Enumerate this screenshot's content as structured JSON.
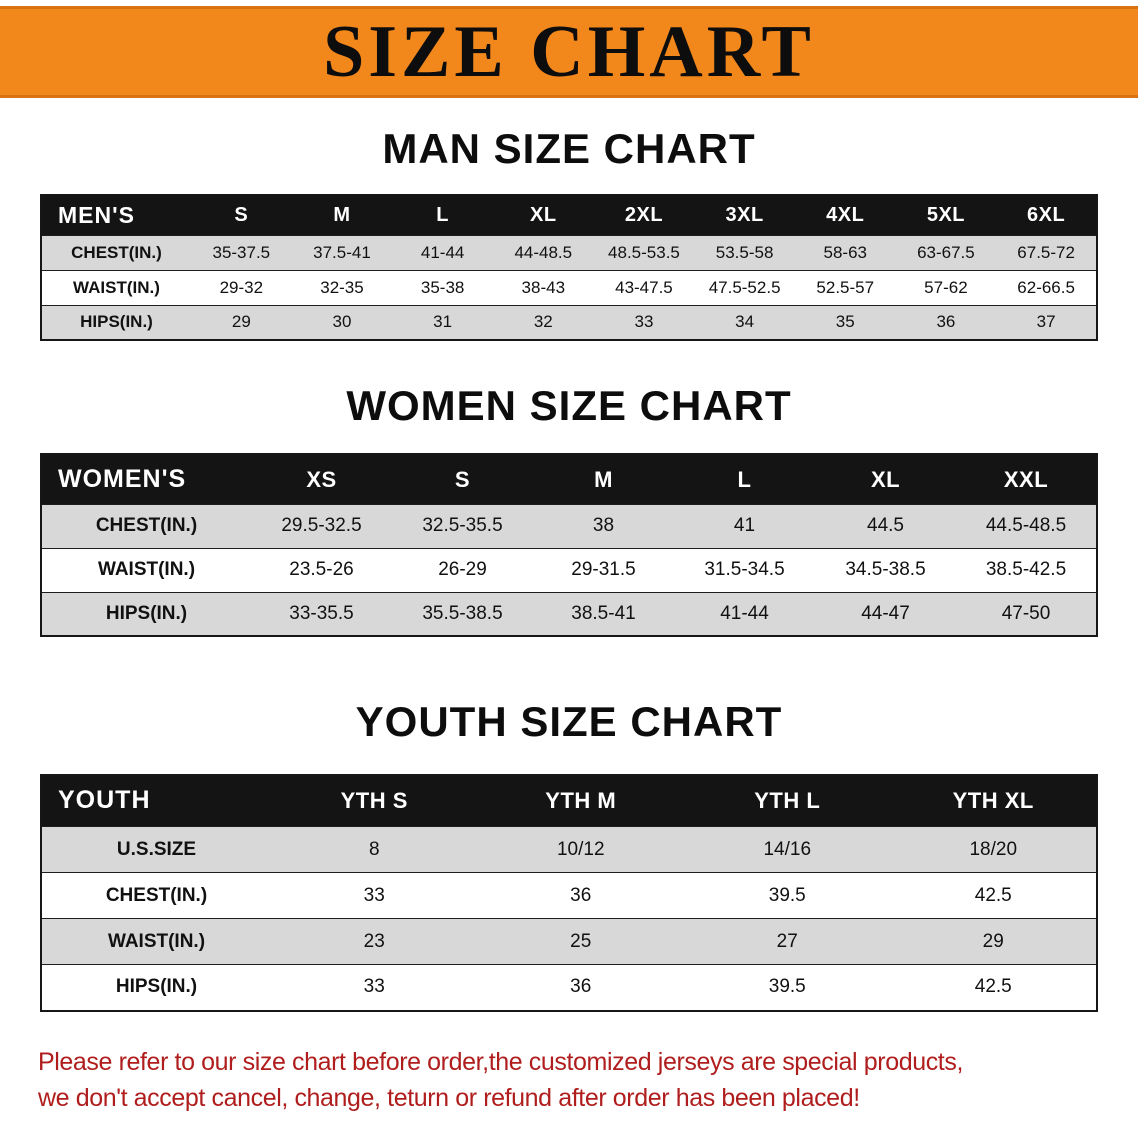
{
  "banner": {
    "title": "SIZE CHART"
  },
  "colors": {
    "banner_bg": "#f2871c",
    "header_bg": "#141414",
    "stripe": "#d8d8d8",
    "note_red": "#b01d1d"
  },
  "sections": [
    {
      "id": "men",
      "heading": "MAN SIZE CHART",
      "table": {
        "corner": "MEN'S",
        "columns": [
          "S",
          "M",
          "L",
          "XL",
          "2XL",
          "3XL",
          "4XL",
          "5XL",
          "6XL"
        ],
        "rows": [
          {
            "label": "CHEST(IN.)",
            "values": [
              "35-37.5",
              "37.5-41",
              "41-44",
              "44-48.5",
              "48.5-53.5",
              "53.5-58",
              "58-63",
              "63-67.5",
              "67.5-72"
            ]
          },
          {
            "label": "WAIST(IN.)",
            "values": [
              "29-32",
              "32-35",
              "35-38",
              "38-43",
              "43-47.5",
              "47.5-52.5",
              "52.5-57",
              "57-62",
              "62-66.5"
            ]
          },
          {
            "label": "HIPS(IN.)",
            "values": [
              "29",
              "30",
              "31",
              "32",
              "33",
              "34",
              "35",
              "36",
              "37"
            ]
          }
        ]
      }
    },
    {
      "id": "women",
      "heading": "WOMEN SIZE CHART",
      "table": {
        "corner": "WOMEN'S",
        "columns": [
          "XS",
          "S",
          "M",
          "L",
          "XL",
          "XXL"
        ],
        "rows": [
          {
            "label": "CHEST(IN.)",
            "values": [
              "29.5-32.5",
              "32.5-35.5",
              "38",
              "41",
              "44.5",
              "44.5-48.5"
            ]
          },
          {
            "label": "WAIST(IN.)",
            "values": [
              "23.5-26",
              "26-29",
              "29-31.5",
              "31.5-34.5",
              "34.5-38.5",
              "38.5-42.5"
            ]
          },
          {
            "label": "HIPS(IN.)",
            "values": [
              "33-35.5",
              "35.5-38.5",
              "38.5-41",
              "41-44",
              "44-47",
              "47-50"
            ]
          }
        ]
      }
    },
    {
      "id": "youth",
      "heading": "YOUTH SIZE CHART",
      "table": {
        "corner": "YOUTH",
        "columns": [
          "YTH S",
          "YTH M",
          "YTH L",
          "YTH XL"
        ],
        "rows": [
          {
            "label": "U.S.SIZE",
            "values": [
              "8",
              "10/12",
              "14/16",
              "18/20"
            ]
          },
          {
            "label": "CHEST(IN.)",
            "values": [
              "33",
              "36",
              "39.5",
              "42.5"
            ]
          },
          {
            "label": "WAIST(IN.)",
            "values": [
              "23",
              "25",
              "27",
              "29"
            ]
          },
          {
            "label": "HIPS(IN.)",
            "values": [
              "33",
              "36",
              "39.5",
              "42.5"
            ]
          }
        ]
      }
    }
  ],
  "note": {
    "line1": "Please refer to our size chart before order,the customized jerseys are special products,",
    "line2": "we don't accept cancel, change, teturn or refund after order has been placed!"
  }
}
